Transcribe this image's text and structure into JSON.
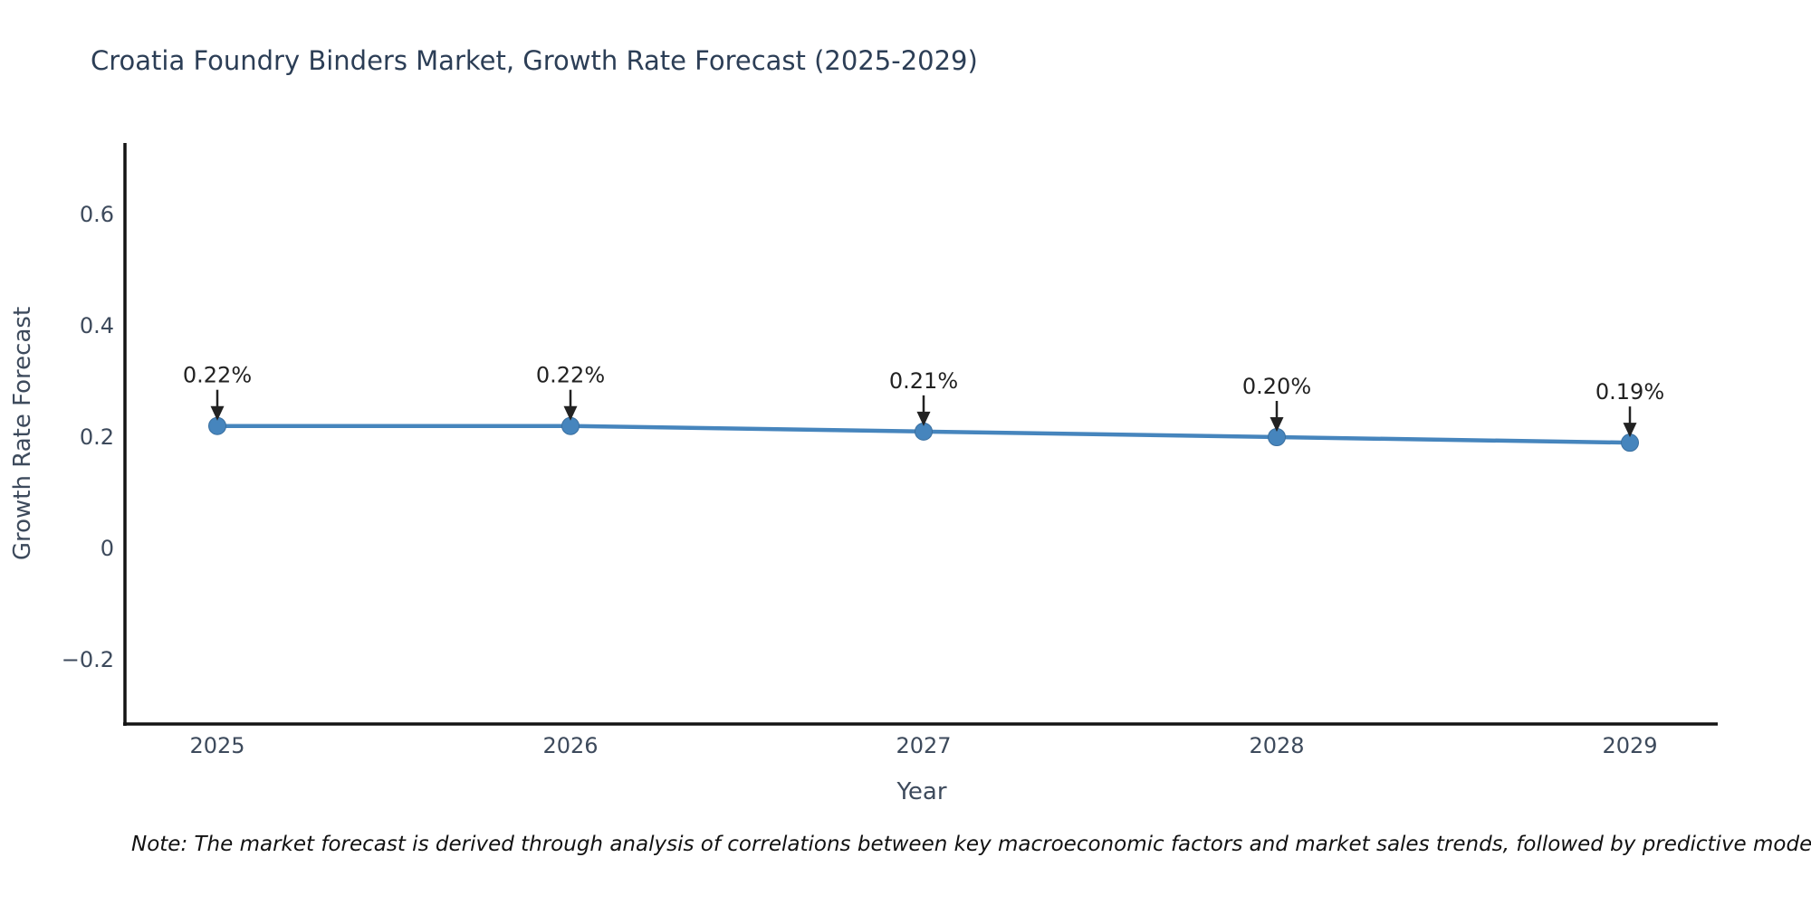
{
  "note": "Note: The market forecast is derived through analysis of correlations between key macroeconomic factors and market sales trends, followed by predictive modeling to project future sal",
  "colors": {
    "line": "#4685bd",
    "marker": "#4685bd",
    "marker_edge": "#3a6f9f",
    "axis": "#141414",
    "tick_label": "#3d4a5c",
    "title": "#2c3e56",
    "annotation": "#222222",
    "background": "#ffffff"
  },
  "chart_data": {
    "type": "line",
    "title": "Croatia Foundry Binders Market, Growth Rate Forecast (2025-2029)",
    "x": [
      "2025",
      "2026",
      "2027",
      "2028",
      "2029"
    ],
    "values": [
      0.22,
      0.22,
      0.21,
      0.2,
      0.19
    ],
    "point_labels": [
      "0.22%",
      "0.22%",
      "0.21%",
      "0.20%",
      "0.19%"
    ],
    "xlabel": "Year",
    "ylabel": "Growth Rate Forecast",
    "yticks": [
      0.6,
      0.4,
      0.2,
      0,
      -0.2
    ],
    "ytick_labels": [
      "0.6",
      "0.4",
      "0.2",
      "0",
      "−0.2"
    ],
    "ylim": [
      -0.32,
      0.73
    ],
    "grid": false,
    "legend_position": "none",
    "annotation_style": "arrow-down-to-point"
  }
}
